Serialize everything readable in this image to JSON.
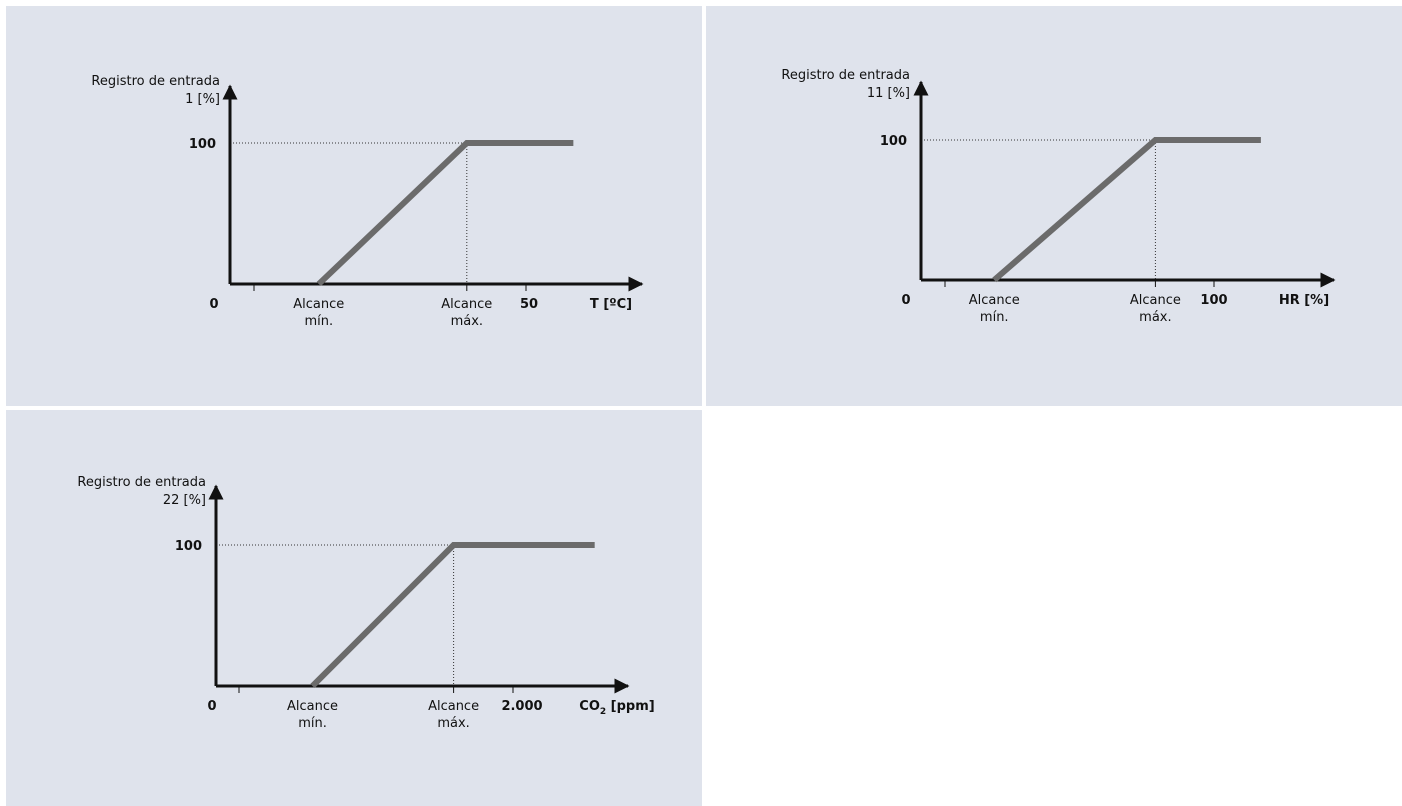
{
  "chart_data": [
    {
      "type": "line",
      "ylabel_line1": "Registro de entrada",
      "ylabel_line2": "1 [%]",
      "xlabel": "T [ºC]",
      "xlabel_sub": "",
      "xlabel_rest": "",
      "x_origin_label": "0",
      "x_tick_label": "50",
      "y_tick_label": "100",
      "range_min_label": [
        "Alcance",
        "mín."
      ],
      "range_max_label": [
        "Alcance",
        "máx."
      ],
      "x_max_value": 50,
      "y_max_value": 100,
      "range_min": 15,
      "range_max": 40,
      "points": [
        [
          15,
          0
        ],
        [
          40,
          100
        ],
        [
          58,
          100
        ]
      ],
      "series_color": "#6b6b6b"
    },
    {
      "type": "line",
      "ylabel_line1": "Registro de entrada",
      "ylabel_line2": "11 [%]",
      "xlabel": "HR [%]",
      "xlabel_sub": "",
      "xlabel_rest": "",
      "x_origin_label": "0",
      "x_tick_label": "100",
      "y_tick_label": "100",
      "range_min_label": [
        "Alcance",
        "mín."
      ],
      "range_max_label": [
        "Alcance",
        "máx."
      ],
      "x_max_value": 100,
      "y_max_value": 100,
      "range_min": 25,
      "range_max": 80,
      "points": [
        [
          25,
          0
        ],
        [
          80,
          100
        ],
        [
          116,
          100
        ]
      ],
      "series_color": "#6b6b6b"
    },
    {
      "type": "line",
      "ylabel_line1": "Registro de entrada",
      "ylabel_line2": "22 [%]",
      "xlabel": "CO",
      "xlabel_sub": "2",
      "xlabel_rest": " [ppm]",
      "x_origin_label": "0",
      "x_tick_label": "2.000",
      "y_tick_label": "100",
      "range_min_label": [
        "Alcance",
        "mín."
      ],
      "range_max_label": [
        "Alcance",
        "máx."
      ],
      "x_max_value": 2000,
      "y_max_value": 100,
      "range_min": 650,
      "range_max": 1600,
      "points": [
        [
          650,
          0
        ],
        [
          1600,
          100
        ],
        [
          2550,
          100
        ]
      ],
      "series_color": "#6b6b6b"
    }
  ]
}
